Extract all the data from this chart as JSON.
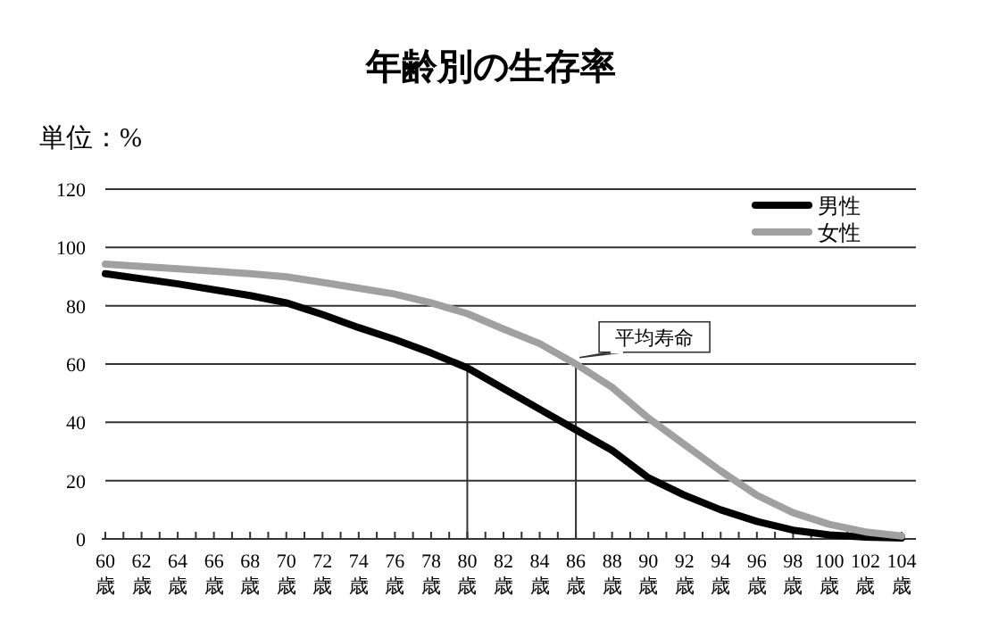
{
  "chart_data": {
    "type": "line",
    "title": "年齢別の生存率",
    "ylabel": "単位：%",
    "xlim": [
      60,
      104
    ],
    "ylim": [
      0,
      120
    ],
    "yticks": [
      0,
      20,
      40,
      60,
      80,
      100,
      120
    ],
    "xticks": [
      {
        "value": 60,
        "label": "60歳"
      },
      {
        "value": 61,
        "label": null
      },
      {
        "value": 62,
        "label": "62歳"
      },
      {
        "value": 63,
        "label": null
      },
      {
        "value": 64,
        "label": "64歳"
      },
      {
        "value": 65,
        "label": null
      },
      {
        "value": 66,
        "label": "66歳"
      },
      {
        "value": 67,
        "label": null
      },
      {
        "value": 68,
        "label": "68歳"
      },
      {
        "value": 69,
        "label": null
      },
      {
        "value": 70,
        "label": "70歳"
      },
      {
        "value": 71,
        "label": null
      },
      {
        "value": 72,
        "label": "72歳"
      },
      {
        "value": 73,
        "label": null
      },
      {
        "value": 74,
        "label": "74歳"
      },
      {
        "value": 75,
        "label": null
      },
      {
        "value": 76,
        "label": "76歳"
      },
      {
        "value": 77,
        "label": null
      },
      {
        "value": 78,
        "label": "78歳"
      },
      {
        "value": 79,
        "label": null
      },
      {
        "value": 80,
        "label": "80歳"
      },
      {
        "value": 81,
        "label": null
      },
      {
        "value": 82,
        "label": "82歳"
      },
      {
        "value": 83,
        "label": null
      },
      {
        "value": 84,
        "label": "84歳"
      },
      {
        "value": 85,
        "label": null
      },
      {
        "value": 86,
        "label": "86歳"
      },
      {
        "value": 87,
        "label": null
      },
      {
        "value": 88,
        "label": "88歳"
      },
      {
        "value": 89,
        "label": null
      },
      {
        "value": 90,
        "label": "90歳"
      },
      {
        "value": 91,
        "label": null
      },
      {
        "value": 92,
        "label": "92歳"
      },
      {
        "value": 93,
        "label": null
      },
      {
        "value": 94,
        "label": "94歳"
      },
      {
        "value": 95,
        "label": null
      },
      {
        "value": 96,
        "label": "96歳"
      },
      {
        "value": 97,
        "label": null
      },
      {
        "value": 98,
        "label": "98歳"
      },
      {
        "value": 99,
        "label": null
      },
      {
        "value": 100,
        "label": "100歳"
      },
      {
        "value": 101,
        "label": null
      },
      {
        "value": 102,
        "label": "102歳"
      },
      {
        "value": 103,
        "label": null
      },
      {
        "value": 104,
        "label": "104歳"
      }
    ],
    "x": [
      60,
      64,
      68,
      70,
      72,
      74,
      76,
      78,
      80,
      82,
      84,
      86,
      88,
      90,
      92,
      94,
      96,
      98,
      100,
      102,
      104
    ],
    "series": [
      {
        "name": "男性",
        "color": "#000000",
        "values": [
          91,
          87.5,
          83.5,
          81,
          77,
          72.5,
          68.4,
          63.8,
          58.7,
          51.6,
          44.5,
          37.4,
          30.4,
          21,
          15,
          10,
          6,
          3,
          1.4,
          0.6,
          0.3
        ]
      },
      {
        "name": "女性",
        "color": "#a0a0a0",
        "values": [
          94.3,
          92.7,
          91,
          89.9,
          88,
          86,
          84,
          81,
          77.3,
          72,
          67,
          60,
          52,
          41.5,
          32.4,
          23.3,
          15,
          9,
          5,
          2.4,
          1
        ]
      }
    ],
    "ref_lines": [
      {
        "axis": "x",
        "value": 80
      },
      {
        "axis": "x",
        "value": 86
      }
    ],
    "annotations": [
      {
        "text": "平均寿命",
        "x": 86,
        "y": 61
      }
    ],
    "grid": "y",
    "legend": "top right",
    "line_style": "solid",
    "marker": "none"
  }
}
